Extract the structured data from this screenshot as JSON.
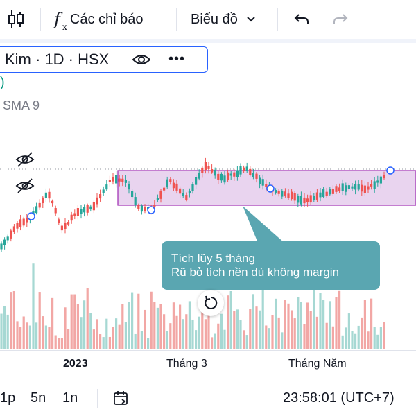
{
  "toolbar": {
    "indicators_icon": "fx-icon",
    "indicators_label": "Các chỉ báo",
    "chart_type_label": "Biểu đồ",
    "undo_icon": "undo-icon",
    "redo_icon": "redo-icon",
    "candle_icon": "candlestick-icon"
  },
  "legend": {
    "symbol": "Kim · 1D · HSX",
    "paren": ")",
    "sma": "SMA 9"
  },
  "annotation": {
    "line1": "Tích lũy 5 tháng",
    "line2": "Rũ bỏ tích nền dù không margin",
    "color": "#5aa6b1"
  },
  "xaxis": {
    "ticks": [
      "2023",
      "Tháng 3",
      "Tháng Năm"
    ]
  },
  "bottombar": {
    "timeframes": [
      "1p",
      "5n",
      "1n"
    ],
    "clock": "23:58:01 (UTC+7)"
  },
  "colors": {
    "up": "#26a69a",
    "down": "#ef5350",
    "vol_up": "#a6d8d3",
    "vol_down": "#f2a7a5",
    "range_fill": "#e1c6ea",
    "range_border": "#9c27b0",
    "accent": "#2962ff"
  }
}
